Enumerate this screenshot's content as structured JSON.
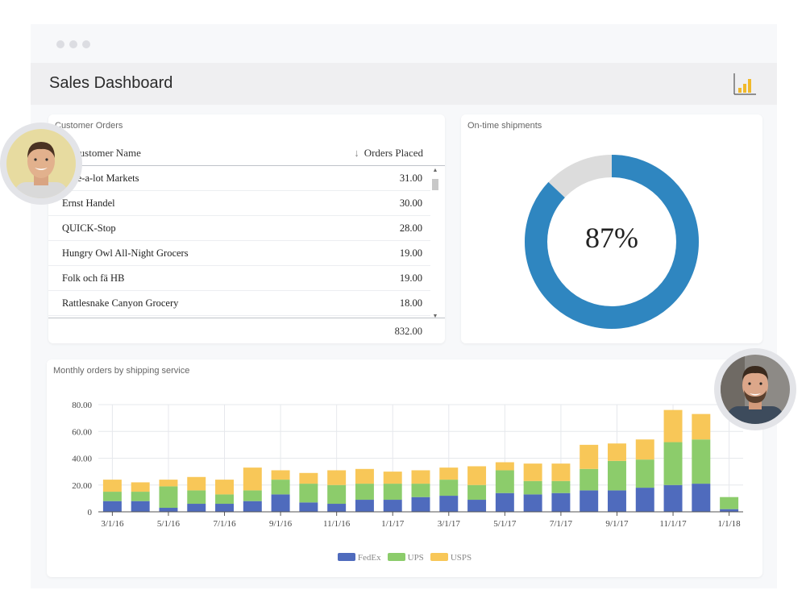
{
  "header": {
    "title": "Sales Dashboard",
    "icon": "bar-chart-icon"
  },
  "orders": {
    "title": "Customer Orders",
    "columns": {
      "name": "Customer Name",
      "orders": "Orders Placed"
    },
    "rows": [
      {
        "name": "Save-a-lot Markets",
        "value": "31.00"
      },
      {
        "name": "Ernst Handel",
        "value": "30.00"
      },
      {
        "name": "QUICK-Stop",
        "value": "28.00"
      },
      {
        "name": "Hungry Owl All-Night Grocers",
        "value": "19.00"
      },
      {
        "name": "Folk och fä HB",
        "value": "19.00"
      },
      {
        "name": "Rattlesnake Canyon Grocery",
        "value": "18.00"
      }
    ],
    "total": "832.00"
  },
  "shipments": {
    "title": "On-time shipments",
    "label": "87%",
    "value": 87
  },
  "monthly": {
    "title": "Monthly orders by shipping service"
  },
  "chart_data": {
    "type": "bar",
    "stacked": true,
    "ylim": [
      0,
      80
    ],
    "y_ticks": [
      "80.00",
      "60.00",
      "40.00",
      "20.00",
      "0"
    ],
    "x_labels": [
      "3/1/16",
      "5/1/16",
      "7/1/16",
      "9/1/16",
      "11/1/16",
      "1/1/17",
      "3/1/17",
      "5/1/17",
      "7/1/17",
      "9/1/17",
      "11/1/17",
      "1/1/18"
    ],
    "categories": [
      "2016-03",
      "2016-04",
      "2016-05",
      "2016-06",
      "2016-07",
      "2016-08",
      "2016-09",
      "2016-10",
      "2016-11",
      "2016-12",
      "2017-01",
      "2017-02",
      "2017-03",
      "2017-04",
      "2017-05",
      "2017-06",
      "2017-07",
      "2017-08",
      "2017-09",
      "2017-10",
      "2017-11",
      "2017-12",
      "2018-01"
    ],
    "series": [
      {
        "name": "FedEx",
        "color": "#4f6bbd",
        "values": [
          8,
          8,
          3,
          6,
          6,
          8,
          13,
          7,
          6,
          9,
          9,
          11,
          12,
          9,
          14,
          13,
          14,
          16,
          16,
          18,
          20,
          21,
          2
        ]
      },
      {
        "name": "UPS",
        "color": "#8ccc6b",
        "values": [
          7,
          7,
          16,
          10,
          7,
          8,
          11,
          14,
          14,
          12,
          12,
          10,
          12,
          11,
          17,
          10,
          9,
          16,
          22,
          21,
          32,
          33,
          9
        ]
      },
      {
        "name": "USPS",
        "color": "#f8c758",
        "values": [
          9,
          7,
          5,
          10,
          11,
          17,
          7,
          8,
          11,
          11,
          9,
          10,
          9,
          14,
          6,
          13,
          13,
          18,
          13,
          15,
          24,
          19,
          0
        ]
      }
    ],
    "grid": true,
    "legend": "bottom"
  }
}
